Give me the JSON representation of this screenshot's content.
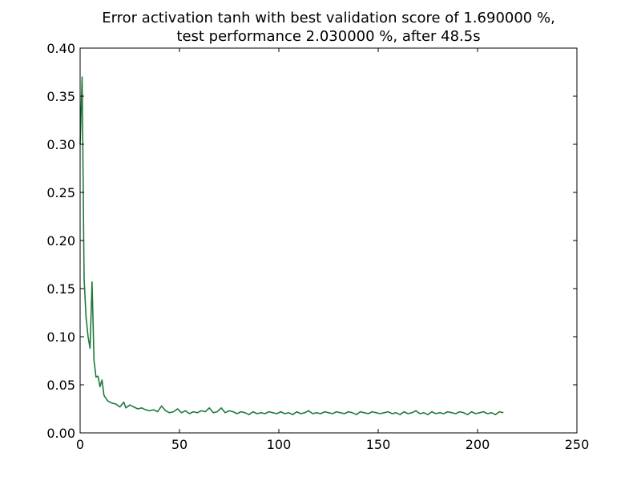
{
  "chart_data": {
    "type": "line",
    "title_lines": [
      "Error activation tanh with best validation score of 1.690000 %,",
      "test performance 2.030000 %, after 48.5s"
    ],
    "xlabel": "",
    "ylabel": "",
    "xlim": [
      0,
      250
    ],
    "ylim": [
      0.0,
      0.4
    ],
    "x_ticks": [
      0,
      50,
      100,
      150,
      200,
      250
    ],
    "y_ticks": [
      0.0,
      0.05,
      0.1,
      0.15,
      0.2,
      0.25,
      0.3,
      0.35,
      0.4
    ],
    "x_tick_labels": [
      "0",
      "50",
      "100",
      "150",
      "200",
      "250"
    ],
    "y_tick_labels": [
      "0.00",
      "0.05",
      "0.10",
      "0.15",
      "0.20",
      "0.25",
      "0.30",
      "0.35",
      "0.40"
    ],
    "grid": false,
    "series": [
      {
        "color": "#1f7a3a",
        "points": [
          [
            0,
            0.3
          ],
          [
            1,
            0.37
          ],
          [
            2,
            0.16
          ],
          [
            3,
            0.12
          ],
          [
            4,
            0.1
          ],
          [
            5,
            0.088
          ],
          [
            6,
            0.157
          ],
          [
            7,
            0.075
          ],
          [
            8,
            0.058
          ],
          [
            9,
            0.059
          ],
          [
            10,
            0.048
          ],
          [
            11,
            0.055
          ],
          [
            12,
            0.039
          ],
          [
            14,
            0.033
          ],
          [
            16,
            0.031
          ],
          [
            18,
            0.03
          ],
          [
            20,
            0.027
          ],
          [
            22,
            0.032
          ],
          [
            23,
            0.026
          ],
          [
            25,
            0.029
          ],
          [
            27,
            0.027
          ],
          [
            29,
            0.025
          ],
          [
            31,
            0.026
          ],
          [
            33,
            0.024
          ],
          [
            35,
            0.023
          ],
          [
            37,
            0.024
          ],
          [
            39,
            0.022
          ],
          [
            41,
            0.028
          ],
          [
            43,
            0.023
          ],
          [
            45,
            0.021
          ],
          [
            47,
            0.022
          ],
          [
            49,
            0.025
          ],
          [
            51,
            0.021
          ],
          [
            53,
            0.023
          ],
          [
            55,
            0.02
          ],
          [
            57,
            0.022
          ],
          [
            59,
            0.021
          ],
          [
            61,
            0.023
          ],
          [
            63,
            0.022
          ],
          [
            65,
            0.026
          ],
          [
            67,
            0.021
          ],
          [
            69,
            0.022
          ],
          [
            71,
            0.026
          ],
          [
            73,
            0.021
          ],
          [
            75,
            0.023
          ],
          [
            77,
            0.022
          ],
          [
            79,
            0.02
          ],
          [
            81,
            0.022
          ],
          [
            83,
            0.021
          ],
          [
            85,
            0.019
          ],
          [
            87,
            0.022
          ],
          [
            89,
            0.02
          ],
          [
            91,
            0.021
          ],
          [
            93,
            0.02
          ],
          [
            95,
            0.022
          ],
          [
            97,
            0.021
          ],
          [
            99,
            0.02
          ],
          [
            101,
            0.022
          ],
          [
            103,
            0.02
          ],
          [
            105,
            0.021
          ],
          [
            107,
            0.019
          ],
          [
            109,
            0.022
          ],
          [
            111,
            0.02
          ],
          [
            113,
            0.021
          ],
          [
            115,
            0.023
          ],
          [
            117,
            0.02
          ],
          [
            119,
            0.021
          ],
          [
            121,
            0.02
          ],
          [
            123,
            0.022
          ],
          [
            125,
            0.021
          ],
          [
            127,
            0.02
          ],
          [
            129,
            0.022
          ],
          [
            131,
            0.021
          ],
          [
            133,
            0.02
          ],
          [
            135,
            0.022
          ],
          [
            137,
            0.021
          ],
          [
            139,
            0.019
          ],
          [
            141,
            0.022
          ],
          [
            143,
            0.021
          ],
          [
            145,
            0.02
          ],
          [
            147,
            0.022
          ],
          [
            149,
            0.021
          ],
          [
            151,
            0.02
          ],
          [
            153,
            0.021
          ],
          [
            155,
            0.022
          ],
          [
            157,
            0.02
          ],
          [
            159,
            0.021
          ],
          [
            161,
            0.019
          ],
          [
            163,
            0.022
          ],
          [
            165,
            0.02
          ],
          [
            167,
            0.021
          ],
          [
            169,
            0.023
          ],
          [
            171,
            0.02
          ],
          [
            173,
            0.021
          ],
          [
            175,
            0.019
          ],
          [
            177,
            0.022
          ],
          [
            179,
            0.02
          ],
          [
            181,
            0.021
          ],
          [
            183,
            0.02
          ],
          [
            185,
            0.022
          ],
          [
            187,
            0.021
          ],
          [
            189,
            0.02
          ],
          [
            191,
            0.022
          ],
          [
            193,
            0.021
          ],
          [
            195,
            0.019
          ],
          [
            197,
            0.022
          ],
          [
            199,
            0.02
          ],
          [
            201,
            0.021
          ],
          [
            203,
            0.022
          ],
          [
            205,
            0.02
          ],
          [
            207,
            0.021
          ],
          [
            209,
            0.019
          ],
          [
            211,
            0.022
          ],
          [
            213,
            0.021
          ]
        ]
      }
    ]
  }
}
